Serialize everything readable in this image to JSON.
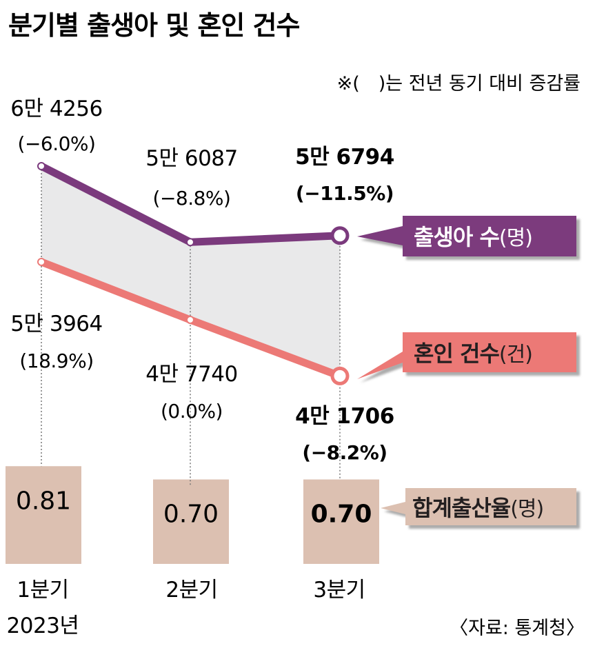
{
  "title": "분기별 출생아 및 혼인 건수",
  "note": "※(　)는 전년 동기 대비 증감률",
  "source": "〈자료: 통계청〉",
  "colors": {
    "births": "#7b3a7d",
    "marriages": "#ec7976",
    "bar": "#dcc0b1",
    "band": "#e9e9ea"
  },
  "chart_data": {
    "type": "line",
    "categories": [
      "1분기",
      "2분기",
      "3분기"
    ],
    "x_sub_label": "2023년",
    "series": [
      {
        "name": "출생아 수",
        "unit": "(명)",
        "values": [
          64256,
          56087,
          56794
        ],
        "value_labels": [
          "6만 4256",
          "5만 6087",
          "5만 6794"
        ],
        "change_labels": [
          "(−6.0%)",
          "(−8.8%)",
          "(−11.5%)"
        ]
      },
      {
        "name": "혼인 건수",
        "unit": "(건)",
        "values": [
          53964,
          47740,
          41706
        ],
        "value_labels": [
          "5만 3964",
          "4만 7740",
          "4만 1706"
        ],
        "change_labels": [
          "(18.9%)",
          "(0.0%)",
          "(−8.2%)"
        ]
      }
    ],
    "bars": {
      "name": "합계출산율",
      "unit": "(명)",
      "values": [
        0.81,
        0.7,
        0.7
      ],
      "labels": [
        "0.81",
        "0.70",
        "0.70"
      ]
    }
  }
}
